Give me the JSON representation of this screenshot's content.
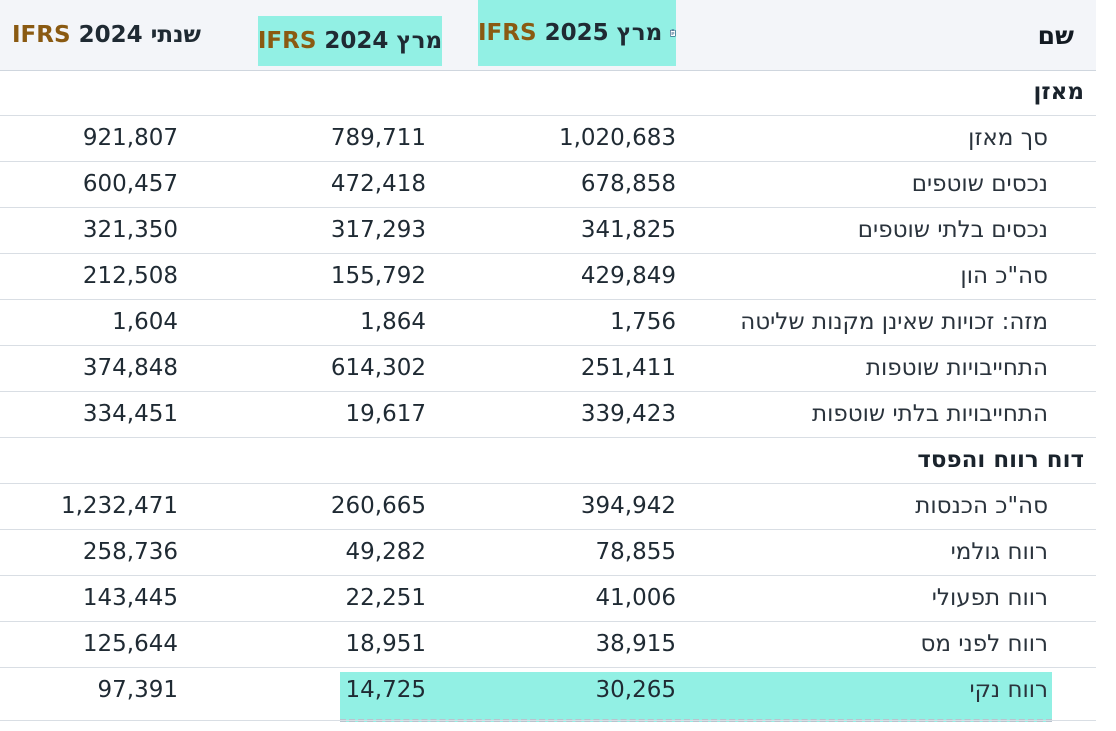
{
  "header": {
    "name_col": "שם",
    "col_mar25_period": "מרץ 2025",
    "col_mar25_std": "IFRS",
    "col_mar24_period": "מרץ 2024",
    "col_mar24_std": "IFRS",
    "col_year24_period": "שנתי 2024",
    "col_year24_std": "IFRS",
    "accent_color": "#92f0e4"
  },
  "rows": [
    {
      "name": "מאזן",
      "section": true
    },
    {
      "name": "סך מאזן",
      "v1": "1,020,683",
      "v2": "789,711",
      "v3": "921,807"
    },
    {
      "name": "נכסים שוטפים",
      "v1": "678,858",
      "v2": "472,418",
      "v3": "600,457"
    },
    {
      "name": "נכסים בלתי שוטפים",
      "v1": "341,825",
      "v2": "317,293",
      "v3": "321,350"
    },
    {
      "name": "סה\"כ הון",
      "v1": "429,849",
      "v2": "155,792",
      "v3": "212,508"
    },
    {
      "name": "מזה: זכויות שאינן מקנות שליטה",
      "v1": "1,756",
      "v2": "1,864",
      "v3": "1,604"
    },
    {
      "name": "התחייבויות שוטפות",
      "v1": "251,411",
      "v2": "614,302",
      "v3": "374,848"
    },
    {
      "name": "התחייבויות בלתי שוטפות",
      "v1": "339,423",
      "v2": "19,617",
      "v3": "334,451"
    },
    {
      "name": "דוח רווח והפסד",
      "section": true
    },
    {
      "name": "סה\"כ הכנסות",
      "v1": "394,942",
      "v2": "260,665",
      "v3": "1,232,471"
    },
    {
      "name": "רווח גולמי",
      "v1": "78,855",
      "v2": "49,282",
      "v3": "258,736"
    },
    {
      "name": "רווח תפעולי",
      "v1": "41,006",
      "v2": "22,251",
      "v3": "143,445"
    },
    {
      "name": "רווח לפני מס",
      "v1": "38,915",
      "v2": "18,951",
      "v3": "125,644"
    },
    {
      "name": "רווח נקי",
      "v1": "30,265",
      "v2": "14,725",
      "v3": "97,391",
      "highlight": true
    }
  ]
}
